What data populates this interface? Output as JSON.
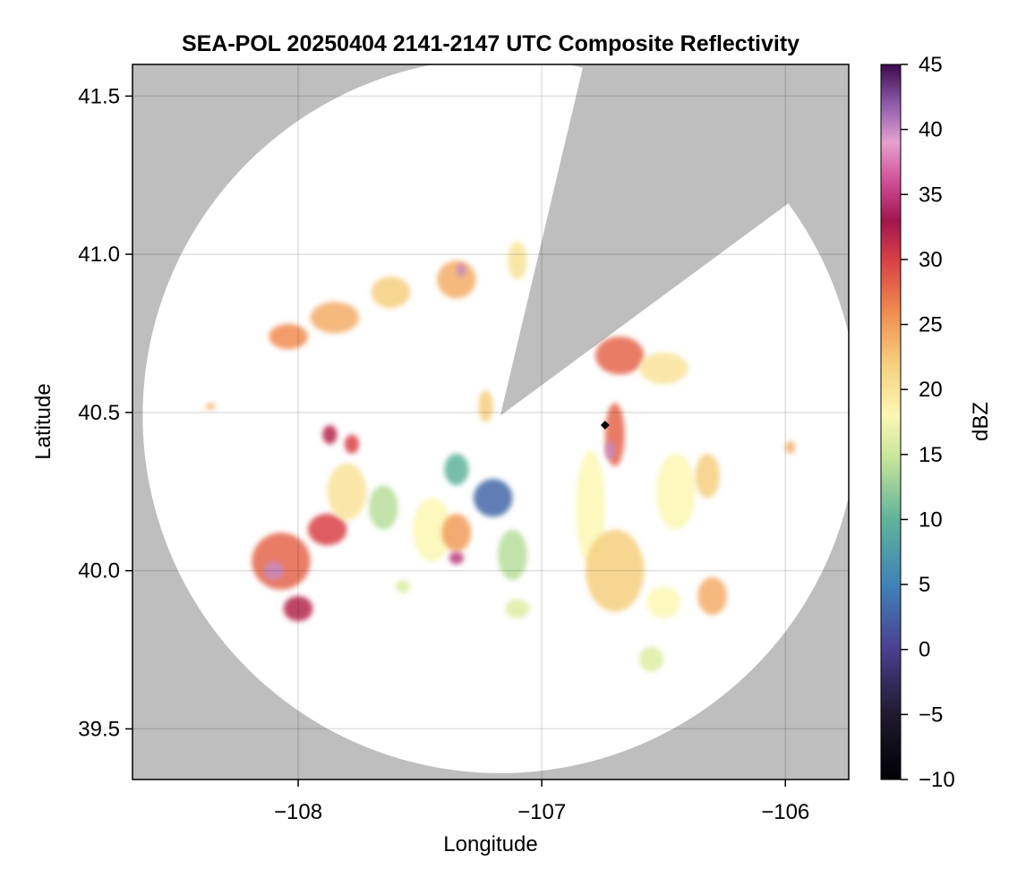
{
  "chart_data": {
    "type": "heatmap",
    "title": "SEA-POL 20250404 2141-2147 UTC Composite Reflectivity",
    "xlabel": "Longitude",
    "ylabel": "Latitude",
    "xlim": [
      -108.68,
      -105.74
    ],
    "ylim": [
      39.34,
      41.6
    ],
    "x_ticks": [
      -108,
      -107,
      -106
    ],
    "x_tick_labels": [
      "−108",
      "−107",
      "−106"
    ],
    "y_ticks": [
      39.5,
      40.0,
      40.5,
      41.0,
      41.5
    ],
    "y_tick_labels": [
      "39.5",
      "40.0",
      "40.5",
      "41.0",
      "41.5"
    ],
    "grid": true,
    "background_color": "#bebebe",
    "coverage_color": "#ffffff",
    "radar": {
      "lon": -107.17,
      "lat": 40.49,
      "range_deg_lat": 1.13
    },
    "blocked_sector": {
      "vertices": [
        [
          -107.17,
          40.49
        ],
        [
          -106.85,
          41.53
        ],
        [
          -106.06,
          41.12
        ]
      ]
    },
    "marker": {
      "lon": -106.74,
      "lat": 40.46,
      "color": "#000000"
    },
    "colorbar": {
      "label": "dBZ",
      "range": [
        -10,
        45
      ],
      "ticks": [
        -10,
        -5,
        0,
        5,
        10,
        15,
        20,
        25,
        30,
        35,
        40,
        45
      ],
      "tick_labels": [
        "−10",
        "−5",
        "0",
        "5",
        "10",
        "15",
        "20",
        "25",
        "30",
        "35",
        "40",
        "45"
      ],
      "colormap_stops": [
        [
          -10,
          "#000004"
        ],
        [
          -5,
          "#1f1a2e"
        ],
        [
          0,
          "#4a3f8f"
        ],
        [
          5,
          "#3f83b8"
        ],
        [
          10,
          "#5fb39a"
        ],
        [
          15,
          "#cde89a"
        ],
        [
          18,
          "#fbf7b3"
        ],
        [
          22,
          "#f6cf7e"
        ],
        [
          26,
          "#f08b4f"
        ],
        [
          30,
          "#d93f45"
        ],
        [
          33,
          "#a2154f"
        ],
        [
          36,
          "#d04f96"
        ],
        [
          39,
          "#e6a0cf"
        ],
        [
          42,
          "#8d59a9"
        ],
        [
          45,
          "#3d0a4d"
        ]
      ]
    },
    "echo_cells": [
      {
        "lon": -108.07,
        "lat": 40.03,
        "rx": 0.12,
        "ry": 0.09,
        "dbz": 28
      },
      {
        "lon": -108.1,
        "lat": 40.0,
        "rx": 0.04,
        "ry": 0.03,
        "dbz": 40
      },
      {
        "lon": -108.0,
        "lat": 39.88,
        "rx": 0.06,
        "ry": 0.04,
        "dbz": 32
      },
      {
        "lon": -107.88,
        "lat": 40.13,
        "rx": 0.08,
        "ry": 0.05,
        "dbz": 30
      },
      {
        "lon": -107.8,
        "lat": 40.25,
        "rx": 0.08,
        "ry": 0.09,
        "dbz": 20
      },
      {
        "lon": -107.87,
        "lat": 40.43,
        "rx": 0.03,
        "ry": 0.03,
        "dbz": 32
      },
      {
        "lon": -107.78,
        "lat": 40.4,
        "rx": 0.03,
        "ry": 0.03,
        "dbz": 30
      },
      {
        "lon": -107.65,
        "lat": 40.2,
        "rx": 0.06,
        "ry": 0.07,
        "dbz": 14
      },
      {
        "lon": -107.45,
        "lat": 40.13,
        "rx": 0.08,
        "ry": 0.1,
        "dbz": 18
      },
      {
        "lon": -107.35,
        "lat": 40.12,
        "rx": 0.06,
        "ry": 0.06,
        "dbz": 25
      },
      {
        "lon": -107.35,
        "lat": 40.04,
        "rx": 0.03,
        "ry": 0.02,
        "dbz": 35
      },
      {
        "lon": -107.2,
        "lat": 40.23,
        "rx": 0.08,
        "ry": 0.06,
        "dbz": 3
      },
      {
        "lon": -107.35,
        "lat": 40.32,
        "rx": 0.05,
        "ry": 0.05,
        "dbz": 10
      },
      {
        "lon": -107.12,
        "lat": 40.05,
        "rx": 0.06,
        "ry": 0.08,
        "dbz": 14
      },
      {
        "lon": -107.23,
        "lat": 40.52,
        "rx": 0.03,
        "ry": 0.05,
        "dbz": 22
      },
      {
        "lon": -108.04,
        "lat": 40.74,
        "rx": 0.08,
        "ry": 0.04,
        "dbz": 26
      },
      {
        "lon": -107.85,
        "lat": 40.8,
        "rx": 0.1,
        "ry": 0.05,
        "dbz": 24
      },
      {
        "lon": -107.62,
        "lat": 40.88,
        "rx": 0.08,
        "ry": 0.05,
        "dbz": 22
      },
      {
        "lon": -107.35,
        "lat": 40.92,
        "rx": 0.08,
        "ry": 0.06,
        "dbz": 24
      },
      {
        "lon": -107.33,
        "lat": 40.95,
        "rx": 0.02,
        "ry": 0.02,
        "dbz": 40
      },
      {
        "lon": -107.1,
        "lat": 40.98,
        "rx": 0.04,
        "ry": 0.06,
        "dbz": 20
      },
      {
        "lon": -106.68,
        "lat": 40.68,
        "rx": 0.1,
        "ry": 0.06,
        "dbz": 28
      },
      {
        "lon": -106.5,
        "lat": 40.64,
        "rx": 0.1,
        "ry": 0.05,
        "dbz": 20
      },
      {
        "lon": -106.7,
        "lat": 40.43,
        "rx": 0.04,
        "ry": 0.1,
        "dbz": 28
      },
      {
        "lon": -106.72,
        "lat": 40.38,
        "rx": 0.02,
        "ry": 0.03,
        "dbz": 40
      },
      {
        "lon": -106.8,
        "lat": 40.2,
        "rx": 0.06,
        "ry": 0.18,
        "dbz": 18
      },
      {
        "lon": -106.7,
        "lat": 40.0,
        "rx": 0.12,
        "ry": 0.13,
        "dbz": 22
      },
      {
        "lon": -106.45,
        "lat": 40.25,
        "rx": 0.08,
        "ry": 0.12,
        "dbz": 18
      },
      {
        "lon": -106.32,
        "lat": 40.3,
        "rx": 0.05,
        "ry": 0.07,
        "dbz": 22
      },
      {
        "lon": -106.3,
        "lat": 39.92,
        "rx": 0.06,
        "ry": 0.06,
        "dbz": 24
      },
      {
        "lon": -106.5,
        "lat": 39.9,
        "rx": 0.07,
        "ry": 0.05,
        "dbz": 18
      },
      {
        "lon": -106.55,
        "lat": 39.72,
        "rx": 0.05,
        "ry": 0.04,
        "dbz": 16
      },
      {
        "lon": -107.57,
        "lat": 39.95,
        "rx": 0.03,
        "ry": 0.02,
        "dbz": 16
      },
      {
        "lon": -107.1,
        "lat": 39.88,
        "rx": 0.05,
        "ry": 0.03,
        "dbz": 16
      },
      {
        "lon": -105.98,
        "lat": 40.39,
        "rx": 0.02,
        "ry": 0.02,
        "dbz": 24
      },
      {
        "lon": -108.36,
        "lat": 40.52,
        "rx": 0.02,
        "ry": 0.01,
        "dbz": 24
      }
    ]
  }
}
